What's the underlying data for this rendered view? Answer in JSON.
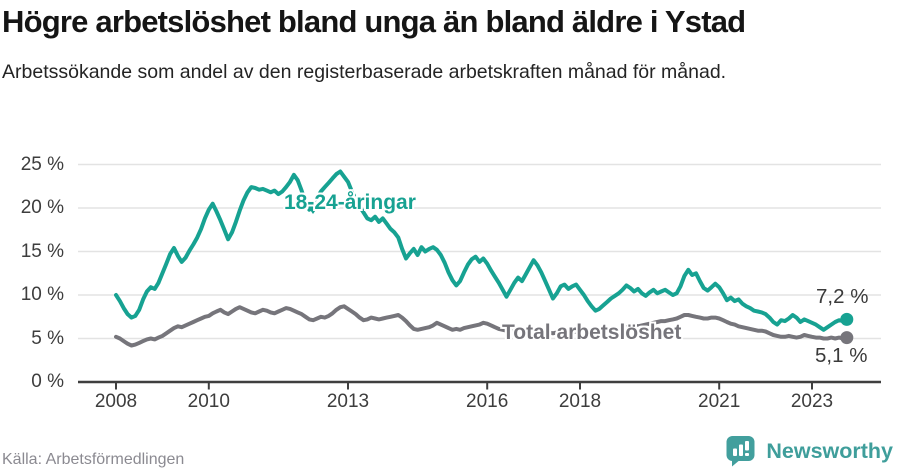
{
  "header": {
    "title": "Högre arbetslöshet bland unga än bland äldre i Ystad",
    "subtitle": "Arbetssökande som andel av den registerbaserade arbetskraften månad för månad."
  },
  "chart_data": {
    "type": "line",
    "unit": "%",
    "frequency": "monthly",
    "x_start_year": 2008,
    "x_end": "2023-10",
    "x_tick_years": [
      2008,
      2010,
      2013,
      2016,
      2018,
      2021,
      2023
    ],
    "x_tick_labels": [
      "2008",
      "2010",
      "2013",
      "2016",
      "2018",
      "2021",
      "2023"
    ],
    "y_ticks": [
      0,
      5,
      10,
      15,
      20,
      25
    ],
    "y_tick_suffix": " %",
    "ylim": [
      0,
      26
    ],
    "grid": "horizontal",
    "legend_position": "inline-annotations",
    "series": [
      {
        "name": "Total arbetslöshet",
        "color": "#76757b",
        "end_label": "5,1 %",
        "last_value": 5.1,
        "values": [
          5.2,
          5.0,
          4.7,
          4.4,
          4.2,
          4.3,
          4.5,
          4.7,
          4.9,
          5.0,
          4.9,
          5.1,
          5.3,
          5.6,
          5.9,
          6.2,
          6.4,
          6.3,
          6.5,
          6.7,
          6.9,
          7.1,
          7.3,
          7.5,
          7.6,
          7.9,
          8.1,
          8.3,
          8.0,
          7.8,
          8.1,
          8.4,
          8.6,
          8.4,
          8.2,
          8.0,
          7.9,
          8.1,
          8.3,
          8.2,
          8.0,
          7.9,
          8.1,
          8.3,
          8.5,
          8.4,
          8.2,
          8.0,
          7.8,
          7.5,
          7.2,
          7.1,
          7.3,
          7.5,
          7.4,
          7.6,
          7.9,
          8.3,
          8.6,
          8.7,
          8.4,
          8.1,
          7.8,
          7.4,
          7.1,
          7.2,
          7.4,
          7.3,
          7.2,
          7.3,
          7.4,
          7.5,
          7.6,
          7.7,
          7.4,
          7.0,
          6.5,
          6.1,
          6.0,
          6.1,
          6.2,
          6.3,
          6.5,
          6.8,
          6.6,
          6.4,
          6.2,
          6.0,
          6.1,
          6.0,
          6.2,
          6.3,
          6.4,
          6.5,
          6.6,
          6.8,
          6.7,
          6.5,
          6.3,
          6.1,
          6.0,
          5.9,
          6.0,
          6.1,
          6.0,
          5.9,
          5.8,
          5.9,
          6.0,
          6.1,
          5.9,
          5.8,
          5.7,
          5.6,
          5.7,
          5.8,
          5.9,
          5.8,
          5.7,
          5.8,
          5.7,
          5.6,
          5.5,
          5.4,
          5.5,
          5.6,
          5.7,
          5.8,
          5.9,
          6.0,
          6.1,
          6.2,
          6.3,
          6.4,
          6.5,
          6.4,
          6.5,
          6.6,
          6.7,
          6.8,
          6.9,
          7.0,
          7.0,
          7.1,
          7.2,
          7.3,
          7.5,
          7.7,
          7.7,
          7.6,
          7.5,
          7.4,
          7.3,
          7.3,
          7.4,
          7.4,
          7.3,
          7.1,
          6.9,
          6.7,
          6.6,
          6.4,
          6.3,
          6.2,
          6.1,
          6.0,
          5.9,
          5.9,
          5.8,
          5.6,
          5.4,
          5.3,
          5.2,
          5.2,
          5.3,
          5.2,
          5.1,
          5.2,
          5.4,
          5.3,
          5.2,
          5.1,
          5.1,
          5.0,
          5.0,
          5.1,
          5.0,
          5.1,
          5.0,
          5.1
        ]
      },
      {
        "name": "18-24-åringar",
        "color": "#17a292",
        "end_label": "7,2 %",
        "last_value": 7.2,
        "values": [
          10.0,
          9.3,
          8.5,
          7.8,
          7.4,
          7.6,
          8.3,
          9.5,
          10.4,
          10.9,
          10.7,
          11.4,
          12.5,
          13.6,
          14.7,
          15.4,
          14.5,
          13.8,
          14.3,
          15.1,
          15.8,
          16.6,
          17.6,
          18.8,
          19.8,
          20.5,
          19.6,
          18.6,
          17.5,
          16.4,
          17.2,
          18.4,
          19.7,
          20.9,
          21.8,
          22.4,
          22.3,
          22.1,
          22.2,
          22.0,
          21.8,
          22.0,
          21.6,
          21.9,
          22.4,
          23.0,
          23.8,
          23.2,
          22.0,
          20.7,
          19.8,
          20.3,
          21.2,
          21.9,
          22.4,
          22.9,
          23.4,
          23.9,
          24.2,
          23.6,
          23.0,
          21.9,
          21.0,
          20.2,
          19.5,
          18.8,
          18.6,
          19.0,
          18.4,
          18.8,
          18.2,
          17.6,
          17.2,
          16.6,
          15.3,
          14.2,
          14.8,
          15.3,
          14.6,
          15.5,
          15.0,
          15.3,
          15.5,
          15.2,
          14.6,
          13.7,
          12.6,
          11.7,
          11.1,
          11.6,
          12.6,
          13.5,
          14.1,
          14.4,
          13.8,
          14.2,
          13.6,
          12.8,
          12.1,
          11.4,
          10.6,
          9.8,
          10.6,
          11.4,
          12.0,
          11.6,
          12.4,
          13.2,
          14.0,
          13.4,
          12.6,
          11.6,
          10.6,
          9.6,
          10.2,
          11.0,
          11.2,
          10.7,
          11.0,
          11.2,
          10.6,
          10.0,
          9.3,
          8.7,
          8.2,
          8.4,
          8.8,
          9.2,
          9.6,
          9.9,
          10.2,
          10.6,
          11.1,
          10.8,
          10.4,
          10.7,
          10.2,
          9.9,
          10.3,
          10.6,
          10.2,
          10.4,
          10.6,
          10.3,
          10.0,
          10.2,
          11.0,
          12.2,
          12.9,
          12.3,
          12.5,
          11.6,
          10.8,
          10.5,
          10.9,
          11.3,
          10.9,
          10.2,
          9.4,
          9.7,
          9.3,
          9.5,
          9.0,
          8.7,
          8.5,
          8.2,
          8.1,
          8.0,
          7.8,
          7.4,
          6.9,
          6.6,
          7.1,
          7.0,
          7.3,
          7.7,
          7.4,
          6.9,
          7.2,
          7.0,
          6.8,
          6.6,
          6.3,
          6.0,
          6.3,
          6.6,
          6.9,
          7.1,
          7.0,
          7.2
        ]
      }
    ]
  },
  "annotations": {
    "young_label": "18-24-åringar",
    "total_label": "Total arbetslöshet",
    "young_end_label": "7,2 %",
    "total_end_label": "5,1 %"
  },
  "footer": {
    "source": "Källa: Arbetsförmedlingen",
    "brand": "Newsworthy"
  },
  "colors": {
    "teal": "#17a292",
    "gray_line": "#76757b",
    "grid": "#e3e3e3",
    "axis": "#3f3f3f",
    "tick_text": "#3d3d3d",
    "title_text": "#151515",
    "muted_text": "#8b8a91",
    "brand_teal": "#3f9e9b"
  }
}
